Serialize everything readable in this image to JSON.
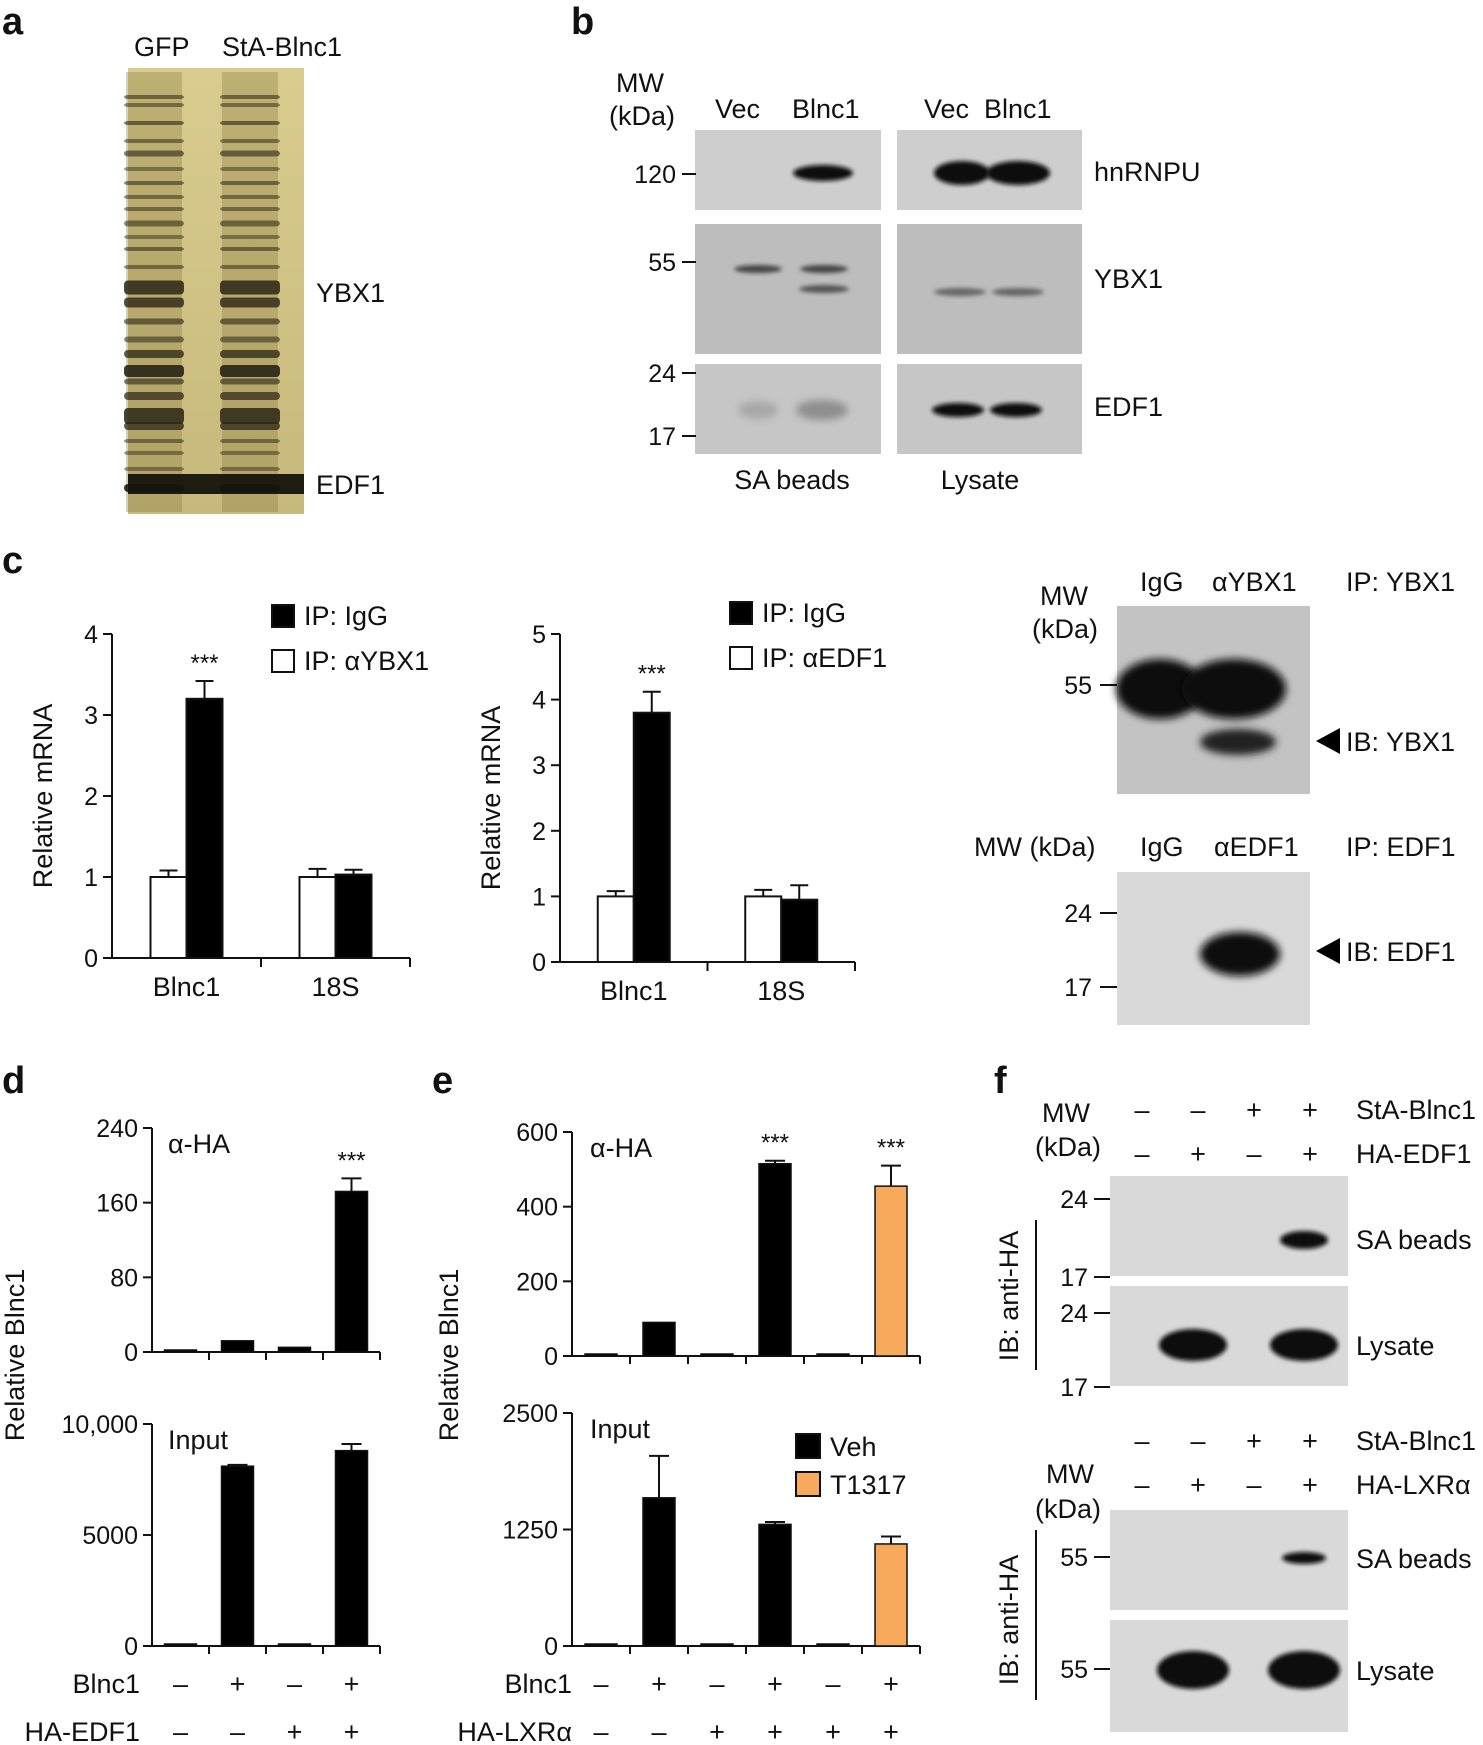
{
  "figure": {
    "panels": {
      "a": {
        "letter": "a",
        "lanes": [
          "GFP",
          "StA-Blnc1"
        ],
        "band_labels": [
          "YBX1",
          "EDF1"
        ]
      },
      "b": {
        "letter": "b",
        "mw_label_line1": "MW",
        "mw_label_line2": "(kDa)",
        "mw_ticks": [
          "120",
          "55",
          "24",
          "17"
        ],
        "lanes_left": [
          "Vec",
          "Blnc1"
        ],
        "lanes_right": [
          "Vec",
          "Blnc1"
        ],
        "proteins": [
          "hnRNPU",
          "YBX1",
          "EDF1"
        ],
        "groups": [
          "SA beads",
          "Lysate"
        ]
      },
      "c": {
        "letter": "c",
        "blot1": {
          "mw_line1": "MW",
          "mw_line2": "(kDa)",
          "lanes": [
            "IgG",
            "αYBX1"
          ],
          "ip": "IP: YBX1",
          "mw_tick": "55",
          "ib": "IB: YBX1"
        },
        "blot2": {
          "mw_label": "MW (kDa)",
          "lanes": [
            "IgG",
            "αEDF1"
          ],
          "ip": "IP: EDF1",
          "mw_ticks": [
            "24",
            "17"
          ],
          "ib": "IB: EDF1"
        }
      },
      "d": {
        "letter": "d",
        "ylabel": "Relative Blnc1",
        "row_labels": [
          "Blnc1",
          "HA-EDF1"
        ],
        "row1_signs": [
          "–",
          "+",
          "–",
          "+"
        ],
        "row2_signs": [
          "–",
          "–",
          "+",
          "+"
        ]
      },
      "e": {
        "letter": "e",
        "ylabel": "Relative Blnc1",
        "row_labels": [
          "Blnc1",
          "HA-LXRα"
        ],
        "row1_signs": [
          "–",
          "+",
          "–",
          "+",
          "–",
          "+"
        ],
        "row2_signs": [
          "–",
          "–",
          "+",
          "+",
          "+",
          "+"
        ]
      },
      "f": {
        "letter": "f",
        "top": {
          "mw_line1": "MW",
          "mw_line2": "(kDa)",
          "row1_label": "StA-Blnc1",
          "row1_signs": [
            "–",
            "–",
            "+",
            "+"
          ],
          "row2_label": "HA-EDF1",
          "row2_signs": [
            "–",
            "+",
            "–",
            "+"
          ],
          "ib": "IB: anti-HA",
          "mw_ticks": [
            "24",
            "17",
            "24",
            "17"
          ],
          "blot_labels": [
            "SA beads",
            "Lysate"
          ]
        },
        "bottom": {
          "mw_line1": "MW",
          "mw_line2": "(kDa)",
          "row1_label": "StA-Blnc1",
          "row1_signs": [
            "–",
            "–",
            "+",
            "+"
          ],
          "row2_label": "HA-LXRα",
          "row2_signs": [
            "–",
            "+",
            "–",
            "+"
          ],
          "ib": "IB: anti-HA",
          "mw_ticks": [
            "55",
            "55"
          ],
          "blot_labels": [
            "SA beads",
            "Lysate"
          ]
        }
      }
    }
  },
  "chart_data": [
    {
      "id": "c1",
      "type": "bar",
      "ylabel": "Relative mRNA",
      "categories": [
        "Blnc1",
        "18S"
      ],
      "ylim": [
        0,
        4
      ],
      "yticks": [
        0,
        1,
        2,
        3,
        4
      ],
      "series": [
        {
          "name": "IP: αYBX1",
          "fill": "#ffffff",
          "values": [
            1.0,
            1.0
          ],
          "errors": [
            0.08,
            0.1
          ]
        },
        {
          "name": "IP: IgG",
          "fill": "#000000",
          "values": [
            3.2,
            1.03
          ],
          "errors": [
            0.22,
            0.06
          ]
        }
      ],
      "legend": [
        "IP: IgG",
        "IP: αYBX1"
      ],
      "significance": [
        "***",
        ""
      ]
    },
    {
      "id": "c2",
      "type": "bar",
      "ylabel": "Relative mRNA",
      "categories": [
        "Blnc1",
        "18S"
      ],
      "ylim": [
        0,
        5
      ],
      "yticks": [
        0,
        1,
        2,
        3,
        4,
        5
      ],
      "series": [
        {
          "name": "IP: αEDF1",
          "fill": "#ffffff",
          "values": [
            1.0,
            1.0
          ],
          "errors": [
            0.08,
            0.1
          ]
        },
        {
          "name": "IP: IgG",
          "fill": "#000000",
          "values": [
            3.8,
            0.95
          ],
          "errors": [
            0.32,
            0.22
          ]
        }
      ],
      "legend": [
        "IP: IgG",
        "IP: αEDF1"
      ],
      "significance": [
        "***",
        ""
      ]
    },
    {
      "id": "d_top",
      "type": "bar",
      "annotation": "α-HA",
      "ylim": [
        0,
        240
      ],
      "yticks": [
        0,
        80,
        160,
        240
      ],
      "ytick_labels": [
        "0",
        "80",
        "160",
        "240"
      ],
      "values": [
        1,
        12,
        5,
        172
      ],
      "errors": [
        0,
        0,
        0,
        14
      ],
      "colors": [
        "#000000",
        "#000000",
        "#000000",
        "#000000"
      ],
      "significance": [
        "",
        "",
        "",
        "***"
      ]
    },
    {
      "id": "d_bottom",
      "type": "bar",
      "annotation": "Input",
      "ylim": [
        0,
        10000
      ],
      "yticks": [
        0,
        5000,
        10000
      ],
      "ytick_labels": [
        "0",
        "5000",
        "10,000"
      ],
      "values": [
        20,
        8100,
        50,
        8800
      ],
      "errors": [
        0,
        60,
        0,
        300
      ],
      "colors": [
        "#000000",
        "#000000",
        "#000000",
        "#000000"
      ],
      "significance": [
        "",
        "",
        "",
        ""
      ]
    },
    {
      "id": "e_top",
      "type": "bar",
      "annotation": "α-HA",
      "ylim": [
        0,
        600
      ],
      "yticks": [
        0,
        200,
        400,
        600
      ],
      "ytick_labels": [
        "0",
        "200",
        "400",
        "600"
      ],
      "values": [
        2,
        90,
        2,
        515,
        2,
        455
      ],
      "errors": [
        0,
        0,
        0,
        8,
        0,
        55
      ],
      "colors": [
        "#000000",
        "#000000",
        "#000000",
        "#000000",
        "#000000",
        "#f7a95c"
      ],
      "significance": [
        "",
        "",
        "",
        "***",
        "",
        "***"
      ]
    },
    {
      "id": "e_bottom",
      "type": "bar",
      "annotation": "Input",
      "ylim": [
        0,
        2500
      ],
      "yticks": [
        0,
        1250,
        2500
      ],
      "ytick_labels": [
        "0",
        "1250",
        "2500"
      ],
      "values": [
        5,
        1590,
        5,
        1305,
        5,
        1095
      ],
      "errors": [
        0,
        450,
        0,
        25,
        0,
        80
      ],
      "colors": [
        "#000000",
        "#000000",
        "#000000",
        "#000000",
        "#000000",
        "#f7a95c"
      ],
      "legend": [
        {
          "name": "Veh",
          "color": "#000000"
        },
        {
          "name": "T1317",
          "color": "#f7a95c"
        }
      ],
      "significance": [
        "",
        "",
        "",
        "",
        "",
        ""
      ]
    }
  ]
}
